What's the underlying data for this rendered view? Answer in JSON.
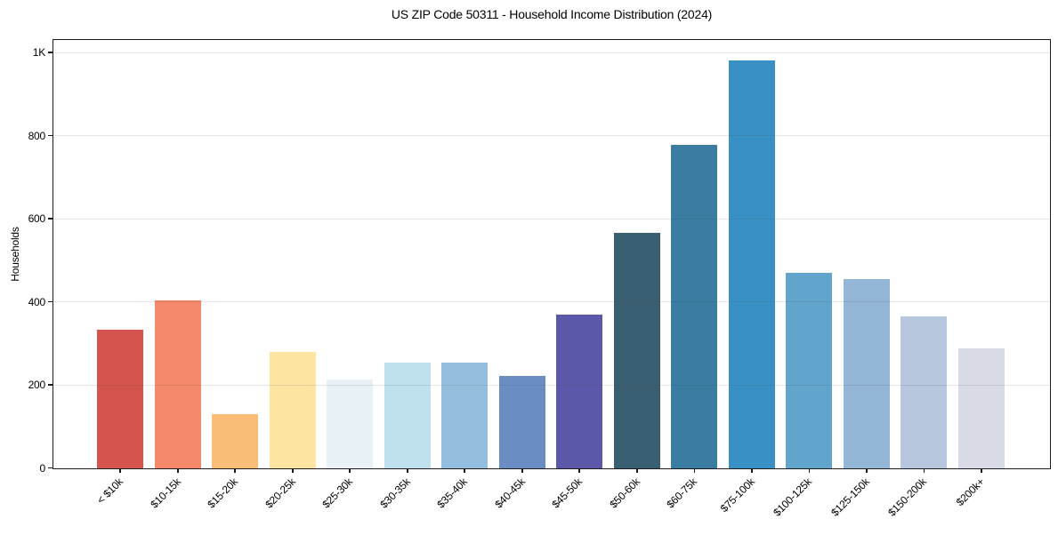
{
  "chart_data": {
    "type": "bar",
    "title": "US ZIP Code 50311 - Household Income Distribution (2024)",
    "xlabel": "",
    "ylabel": "Households",
    "categories": [
      "< $10k",
      "$10-15k",
      "$15-20k",
      "$20-25k",
      "$25-30k",
      "$30-35k",
      "$35-40k",
      "$40-45k",
      "$45-50k",
      "$50-60k",
      "$60-75k",
      "$75-100k",
      "$100-125k",
      "$125-150k",
      "$150-200k",
      "$200k+"
    ],
    "values": [
      333,
      404,
      129,
      280,
      213,
      254,
      254,
      222,
      368,
      565,
      778,
      980,
      470,
      455,
      365,
      288
    ],
    "bar_colors": [
      "#d5544e",
      "#f3896a",
      "#fabd76",
      "#fde4a1",
      "#e7f1f6",
      "#bfe0ee",
      "#94bedd",
      "#6a8dc4",
      "#5b58a9",
      "#3a5f73",
      "#3a7ca2",
      "#3990c4",
      "#61a4cc",
      "#93b6d7",
      "#b7c7de",
      "#d8dae6"
    ],
    "ylim": [
      0,
      1030
    ],
    "yticks": [
      {
        "value": 0,
        "label": "0"
      },
      {
        "value": 200,
        "label": "200"
      },
      {
        "value": 400,
        "label": "400"
      },
      {
        "value": 600,
        "label": "600"
      },
      {
        "value": 800,
        "label": "800"
      },
      {
        "value": 1000,
        "label": "1K"
      }
    ],
    "grid": "horizontal",
    "legend": "none",
    "x_tick_rotation": 45,
    "axis_color": "#1c1c1c",
    "background_color": "#ffffff"
  }
}
